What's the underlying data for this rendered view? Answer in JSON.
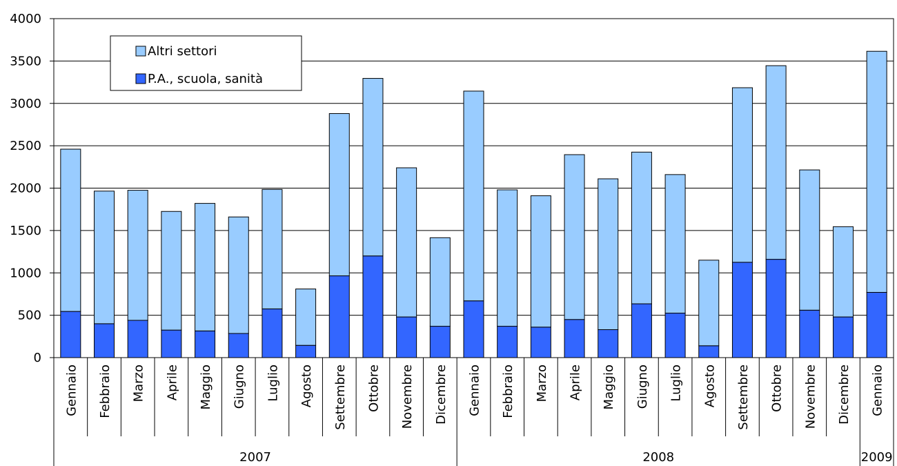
{
  "chart_data": {
    "type": "bar",
    "stacked": true,
    "categories": [
      "Gennaio",
      "Febbraio",
      "Marzo",
      "Aprile",
      "Maggio",
      "Giugno",
      "Luglio",
      "Agosto",
      "Settembre",
      "Ottobre",
      "Novembre",
      "Dicembre",
      "Gennaio",
      "Febbraio",
      "Marzo",
      "Aprile",
      "Maggio",
      "Giugno",
      "Luglio",
      "Agosto",
      "Settembre",
      "Ottobre",
      "Novembre",
      "Dicembre",
      "Gennaio"
    ],
    "groups": [
      {
        "label": "2007",
        "count": 12
      },
      {
        "label": "2008",
        "count": 12
      },
      {
        "label": "2009",
        "count": 1
      }
    ],
    "series": [
      {
        "name": "P.A., scuola, sanità",
        "color": "#3366ff",
        "values": [
          545,
          400,
          440,
          325,
          315,
          285,
          575,
          145,
          965,
          1200,
          480,
          370,
          670,
          370,
          360,
          450,
          330,
          635,
          525,
          140,
          1125,
          1160,
          560,
          480,
          770
        ]
      },
      {
        "name": "Altri settori",
        "color": "#99ccff",
        "values": [
          1915,
          1565,
          1535,
          1400,
          1505,
          1375,
          1410,
          665,
          1915,
          2095,
          1760,
          1045,
          2475,
          1610,
          1550,
          1945,
          1780,
          1790,
          1635,
          1010,
          2060,
          2285,
          1655,
          1065,
          2845
        ]
      }
    ],
    "ylim": [
      0,
      4000
    ],
    "yticks": [
      0,
      500,
      1000,
      1500,
      2000,
      2500,
      3000,
      3500,
      4000
    ],
    "grid": true,
    "legend": {
      "position": "top-left",
      "order": [
        "Altri settori",
        "P.A., scuola, sanità"
      ]
    }
  }
}
